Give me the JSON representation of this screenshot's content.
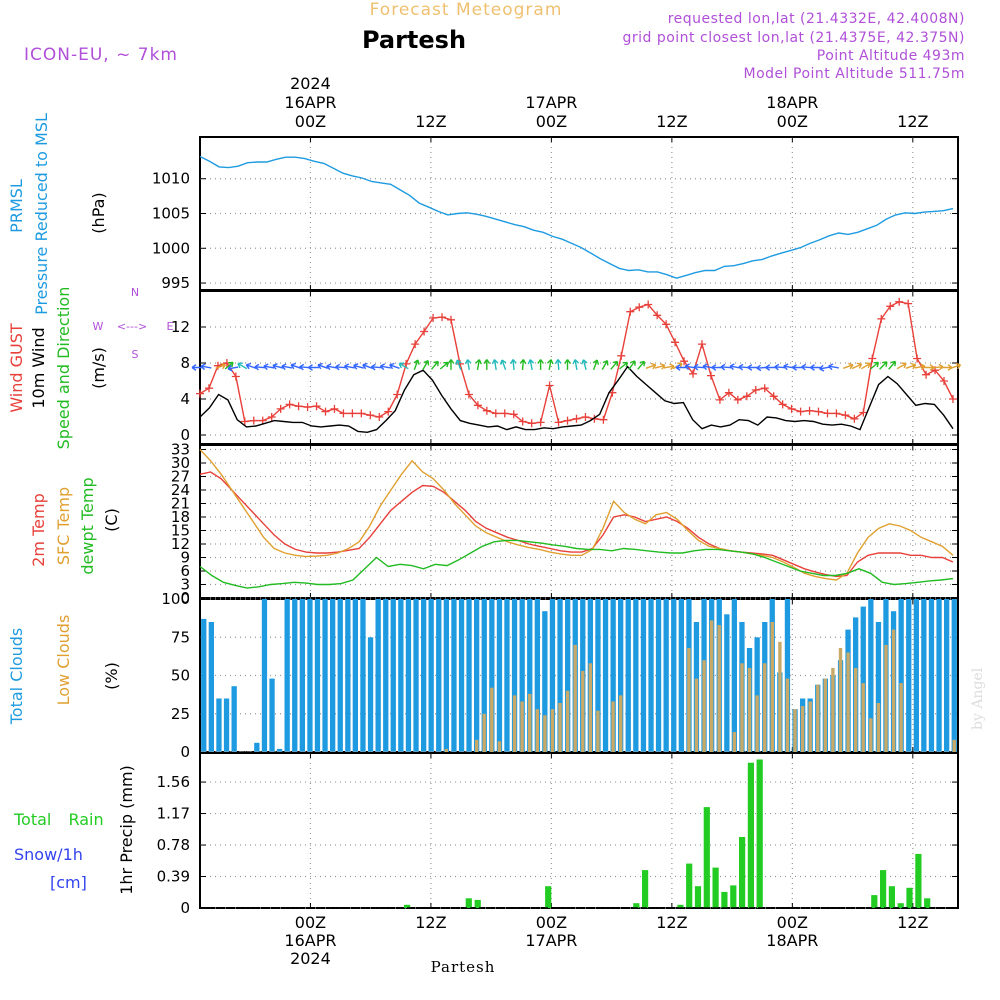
{
  "header": {
    "app_title": "Forecast Meteogram",
    "location": "Partesh",
    "model": "ICON-EU, ~ 7km",
    "requested": "requested lon,lat (21.4332E, 42.4008N)",
    "grid_point": "grid point closest lon,lat (21.4375E, 42.375N)",
    "point_alt": "Point Altitude 493m",
    "model_alt": "Model Point Altitude 511.75m",
    "watermark": "by Angel",
    "footer_location": "Partesh"
  },
  "colors": {
    "pressure": "#1e9be0",
    "gust": "#e8403a",
    "wind": "#000000",
    "green": "#22bb22",
    "sfc": "#e0a030",
    "total_cloud": "#1e9be0",
    "low_cloud": "#c8a968",
    "rain": "#22cc22",
    "snow": "#3344ee",
    "purple": "#b050d8",
    "title": "#f0c070"
  },
  "time_axis": {
    "top_labels": [
      {
        "hour": 0,
        "lines": [
          "2024",
          "16APR",
          "00Z"
        ]
      },
      {
        "hour": 12,
        "lines": [
          "12Z"
        ]
      },
      {
        "hour": 24,
        "lines": [
          "17APR",
          "00Z"
        ]
      },
      {
        "hour": 36,
        "lines": [
          "12Z"
        ]
      },
      {
        "hour": 48,
        "lines": [
          "18APR",
          "00Z"
        ]
      },
      {
        "hour": 60,
        "lines": [
          "12Z"
        ]
      }
    ],
    "bottom_labels": [
      {
        "hour": 0,
        "lines": [
          "00Z",
          "16APR",
          "2024"
        ]
      },
      {
        "hour": 12,
        "lines": [
          "12Z"
        ]
      },
      {
        "hour": 24,
        "lines": [
          "00Z",
          "17APR"
        ]
      },
      {
        "hour": 36,
        "lines": [
          "12Z"
        ]
      },
      {
        "hour": 48,
        "lines": [
          "00Z",
          "18APR"
        ]
      },
      {
        "hour": 60,
        "lines": [
          "12Z"
        ]
      }
    ]
  },
  "chart_data": [
    {
      "type": "line",
      "title": "PRMSL Pressure Reduced to MSL",
      "ylabel": "(hPa)",
      "side_labels": [
        "PRMSL",
        "Pressure Reduced to MSL"
      ],
      "yticks": [
        995,
        1000,
        1005,
        1010
      ],
      "ylim": [
        994,
        1016
      ],
      "x_hours_start": -11,
      "series": [
        {
          "name": "PRMSL",
          "color_key": "pressure",
          "values": [
            1013.2,
            1012.5,
            1011.7,
            1011.6,
            1011.8,
            1012.3,
            1012.4,
            1012.4,
            1012.8,
            1013.1,
            1013.1,
            1012.9,
            1012.5,
            1012.2,
            1011.5,
            1010.8,
            1010.4,
            1010.1,
            1009.6,
            1009.4,
            1009.2,
            1008.4,
            1007.6,
            1006.5,
            1005.9,
            1005.3,
            1004.8,
            1005.0,
            1005.1,
            1004.9,
            1004.6,
            1004.2,
            1003.8,
            1003.4,
            1003.1,
            1002.6,
            1002.3,
            1001.7,
            1001.3,
            1000.7,
            1000.1,
            999.3,
            998.5,
            997.8,
            997.1,
            996.8,
            996.9,
            996.6,
            996.6,
            996.2,
            995.7,
            996.1,
            996.5,
            996.8,
            996.8,
            997.4,
            997.5,
            997.8,
            998.2,
            998.4,
            998.9,
            999.3,
            999.7,
            1000.1,
            1000.7,
            1001.2,
            1001.8,
            1002.2,
            1002.0,
            1002.3,
            1002.8,
            1003.3,
            1004.2,
            1004.8,
            1005.1,
            1005.0,
            1005.2,
            1005.3,
            1005.4,
            1005.7
          ]
        }
      ]
    },
    {
      "type": "line",
      "title": "Wind GUST / 10m Wind Speed and Direction",
      "ylabel": "(m/s)",
      "side_labels": [
        "Wind GUST",
        "10m Wind",
        "Speed and Direction"
      ],
      "compass": {
        "n": "N",
        "s": "S",
        "w": "W",
        "e": "E"
      },
      "yticks": [
        0,
        4,
        8,
        12
      ],
      "ylim": [
        -1,
        16
      ],
      "x_hours_start": -11,
      "series": [
        {
          "name": "Wind GUST",
          "color_key": "gust",
          "marker": "+",
          "values": [
            4.6,
            5.2,
            7.7,
            8.0,
            6.5,
            1.5,
            1.6,
            1.6,
            2.0,
            2.9,
            3.4,
            3.2,
            3.1,
            3.2,
            2.6,
            2.9,
            2.4,
            2.4,
            2.4,
            2.2,
            2.0,
            2.6,
            4.5,
            7.9,
            10.1,
            11.5,
            13.0,
            13.1,
            12.8,
            7.9,
            4.5,
            3.3,
            2.7,
            2.4,
            2.4,
            2.3,
            1.5,
            1.3,
            1.4,
            5.5,
            1.4,
            1.6,
            1.8,
            2.0,
            1.8,
            1.7,
            4.7,
            8.8,
            13.7,
            14.2,
            14.5,
            13.3,
            12.3,
            10.3,
            8.2,
            6.8,
            10.1,
            6.6,
            3.9,
            4.7,
            3.9,
            4.3,
            5.0,
            5.2,
            4.3,
            3.4,
            2.9,
            2.6,
            2.7,
            2.6,
            2.4,
            2.4,
            2.2,
            1.8,
            2.5,
            8.5,
            12.9,
            14.3,
            14.8,
            14.6,
            8.5,
            6.7,
            7.2,
            6.0,
            4.0
          ]
        },
        {
          "name": "10m Wind",
          "color_key": "wind",
          "values": [
            2.0,
            3.0,
            4.5,
            3.9,
            1.7,
            0.9,
            1.0,
            1.3,
            1.6,
            1.5,
            1.4,
            1.4,
            1.0,
            0.9,
            1.0,
            1.1,
            1.0,
            0.4,
            0.3,
            0.6,
            1.6,
            2.7,
            5.0,
            6.7,
            7.2,
            6.1,
            4.4,
            2.9,
            1.6,
            1.3,
            1.1,
            0.9,
            1.0,
            0.6,
            0.9,
            0.6,
            0.6,
            0.8,
            0.7,
            0.9,
            1.0,
            1.1,
            1.6,
            2.3,
            4.7,
            6.1,
            7.6,
            6.5,
            5.6,
            4.7,
            3.8,
            3.5,
            3.6,
            1.7,
            0.7,
            1.1,
            0.9,
            1.1,
            1.7,
            1.6,
            1.1,
            2.0,
            1.9,
            1.6,
            1.5,
            1.6,
            1.5,
            1.2,
            1.1,
            1.2,
            1.0,
            0.6,
            3.1,
            5.6,
            6.5,
            5.7,
            4.5,
            3.3,
            3.5,
            3.4,
            2.2,
            0.7
          ]
        }
      ],
      "wind_barbs": {
        "level": 7.5,
        "directions_deg": [
          90,
          100,
          250,
          230,
          80,
          120,
          110,
          95,
          100,
          105,
          100,
          110,
          95,
          90,
          110,
          100,
          95,
          100,
          105,
          110,
          95,
          100,
          110,
          120,
          200,
          210,
          220,
          230,
          180,
          160,
          170,
          190,
          180,
          170,
          160,
          175,
          185,
          170,
          180,
          190,
          175,
          180,
          170,
          165,
          200,
          210,
          220,
          230,
          215,
          220,
          250,
          255,
          260,
          240,
          90,
          100,
          95,
          100,
          90,
          95,
          100,
          95,
          90,
          85,
          90,
          95,
          100,
          90,
          95,
          90,
          80,
          100,
          250,
          245,
          240,
          230,
          225,
          220,
          240,
          250,
          260,
          270,
          265,
          270,
          250
        ]
      }
    },
    {
      "type": "line",
      "title": "2m Temp / SFC Temp / dewpt Temp",
      "ylabel": "(C)",
      "side_labels": [
        "2m Temp",
        "SFC Temp",
        "dewpt Temp"
      ],
      "yticks": [
        0,
        3,
        6,
        9,
        12,
        15,
        18,
        21,
        24,
        27,
        30,
        33
      ],
      "ylim": [
        0,
        34
      ],
      "x_hours_start": -11,
      "series": [
        {
          "name": "2m Temp",
          "color_key": "gust",
          "values": [
            27.5,
            28.0,
            26.5,
            24.0,
            21.5,
            19.0,
            16.5,
            14.0,
            12.0,
            10.8,
            10.2,
            10.0,
            10.0,
            10.2,
            10.6,
            11.0,
            13.5,
            16.5,
            19.5,
            21.5,
            23.5,
            25.0,
            24.8,
            23.5,
            21.5,
            19.5,
            17.0,
            15.5,
            14.5,
            13.5,
            12.8,
            12.0,
            11.5,
            11.0,
            10.5,
            10.2,
            10.2,
            11.0,
            14.0,
            18.0,
            18.5,
            18.0,
            17.0,
            17.5,
            18.0,
            17.0,
            15.5,
            13.5,
            12.0,
            11.0,
            10.5,
            10.2,
            10.0,
            9.8,
            9.5,
            8.5,
            7.5,
            6.5,
            5.8,
            5.2,
            4.8,
            5.0,
            8.0,
            9.5,
            10.0,
            10.0,
            10.0,
            9.5,
            9.5,
            9.0,
            9.0,
            8.0
          ]
        },
        {
          "name": "SFC Temp",
          "color_key": "sfc",
          "values": [
            33.0,
            30.5,
            27.5,
            24.0,
            20.5,
            17.0,
            13.5,
            11.0,
            10.0,
            9.5,
            9.2,
            9.3,
            9.5,
            10.0,
            11.0,
            12.5,
            16.0,
            20.5,
            24.0,
            27.5,
            30.5,
            28.0,
            26.5,
            24.0,
            21.0,
            18.5,
            16.0,
            14.5,
            13.5,
            12.5,
            11.8,
            11.2,
            10.8,
            10.2,
            9.8,
            9.5,
            9.5,
            10.8,
            15.5,
            21.5,
            19.0,
            17.5,
            16.5,
            18.5,
            19.0,
            17.5,
            15.0,
            12.8,
            11.5,
            11.0,
            10.5,
            10.2,
            9.8,
            9.5,
            9.0,
            8.0,
            6.8,
            5.5,
            4.8,
            4.3,
            4.0,
            5.5,
            10.0,
            13.5,
            15.5,
            16.5,
            16.0,
            15.0,
            13.5,
            12.5,
            11.5,
            9.5
          ]
        },
        {
          "name": "dewpt Temp",
          "color_key": "green",
          "values": [
            7.0,
            5.0,
            3.5,
            2.8,
            2.2,
            2.5,
            3.0,
            3.2,
            3.5,
            3.3,
            3.0,
            3.0,
            3.2,
            4.0,
            6.5,
            9.0,
            7.0,
            7.5,
            7.2,
            6.5,
            7.5,
            7.2,
            8.5,
            10.0,
            11.5,
            12.5,
            12.8,
            12.8,
            12.5,
            12.2,
            11.8,
            11.5,
            11.0,
            10.8,
            10.8,
            10.5,
            11.0,
            10.8,
            10.5,
            10.2,
            10.0,
            10.0,
            10.5,
            10.8,
            10.8,
            10.5,
            10.2,
            9.8,
            9.0,
            8.0,
            7.0,
            6.0,
            5.5,
            5.0,
            5.0,
            5.5,
            6.5,
            5.5,
            3.5,
            3.0,
            3.2,
            3.5,
            3.8,
            4.0,
            4.3
          ]
        }
      ]
    },
    {
      "type": "bar",
      "title": "Total Clouds / Low Clouds",
      "ylabel": "(%)",
      "side_labels": [
        "Total Clouds",
        "Low Clouds"
      ],
      "yticks": [
        0,
        25,
        50,
        75,
        100
      ],
      "ylim": [
        0,
        100
      ],
      "x_hours_start": -11,
      "series": [
        {
          "name": "Total Clouds",
          "color_key": "total_cloud",
          "values": [
            87,
            85,
            35,
            35,
            43,
            0,
            0,
            6,
            100,
            48,
            2,
            100,
            100,
            100,
            100,
            100,
            100,
            100,
            100,
            100,
            100,
            100,
            75,
            100,
            100,
            100,
            100,
            100,
            100,
            100,
            100,
            100,
            100,
            100,
            100,
            100,
            100,
            100,
            100,
            100,
            100,
            100,
            100,
            100,
            100,
            92,
            100,
            100,
            100,
            100,
            100,
            100,
            100,
            100,
            100,
            100,
            100,
            100,
            100,
            100,
            100,
            100,
            100,
            100,
            100,
            85,
            100,
            100,
            100,
            90,
            100,
            85,
            68,
            75,
            85,
            100,
            52,
            100,
            28,
            35,
            35,
            44,
            48,
            50,
            60,
            80,
            88,
            95,
            100,
            85,
            100,
            92,
            100,
            100,
            100,
            100,
            100,
            100,
            100,
            100
          ]
        },
        {
          "name": "Low Clouds",
          "color_key": "low_cloud",
          "values": [
            0,
            0,
            0,
            0,
            0,
            0,
            0,
            0,
            0,
            0,
            0,
            0,
            0,
            0,
            0,
            0,
            0,
            0,
            0,
            0,
            0,
            0,
            0,
            0,
            0,
            0,
            0,
            0,
            0,
            0,
            0,
            0,
            2,
            0,
            0,
            0,
            8,
            25,
            42,
            7,
            0,
            37,
            33,
            38,
            28,
            24,
            28,
            32,
            40,
            70,
            53,
            58,
            27,
            0,
            33,
            37,
            0,
            0,
            0,
            0,
            0,
            0,
            0,
            0,
            68,
            48,
            60,
            86,
            83,
            0,
            13,
            58,
            55,
            37,
            58,
            85,
            72,
            48,
            28,
            30,
            33,
            44,
            48,
            55,
            68,
            65,
            55,
            45,
            22,
            32,
            70,
            80,
            45,
            0,
            0,
            0,
            0,
            0,
            0,
            8
          ]
        }
      ]
    },
    {
      "type": "bar",
      "title": "1hr Precip",
      "ylabel": "1hr Precip (mm)",
      "side_labels": [
        "Total Rain",
        "Snow/1h",
        "[cm]"
      ],
      "yticks": [
        0,
        0.39,
        0.78,
        1.17,
        1.56
      ],
      "ylim": [
        0,
        1.92
      ],
      "x_hours_start": -11,
      "series": [
        {
          "name": "Total Rain",
          "color_key": "rain",
          "values": [
            0,
            0,
            0,
            0,
            0,
            0,
            0,
            0,
            0,
            0,
            0,
            0,
            0,
            0,
            0,
            0,
            0,
            0,
            0,
            0,
            0,
            0,
            0,
            0.04,
            0,
            0,
            0,
            0,
            0,
            0,
            0.12,
            0.1,
            0,
            0,
            0,
            0,
            0,
            0,
            0,
            0.27,
            0,
            0,
            0,
            0,
            0,
            0,
            0,
            0,
            0,
            0.06,
            0.47,
            0,
            0,
            0,
            0.04,
            0.55,
            0.27,
            1.25,
            0.5,
            0.2,
            0.28,
            0.88,
            1.8,
            1.84,
            0,
            0,
            0,
            0,
            0,
            0,
            0,
            0,
            0,
            0,
            0,
            0,
            0.16,
            0.47,
            0.27,
            0.06,
            0.25,
            0.67,
            0.12,
            0,
            0,
            0
          ]
        },
        {
          "name": "Snow",
          "color_key": "snow",
          "values": []
        }
      ]
    }
  ]
}
